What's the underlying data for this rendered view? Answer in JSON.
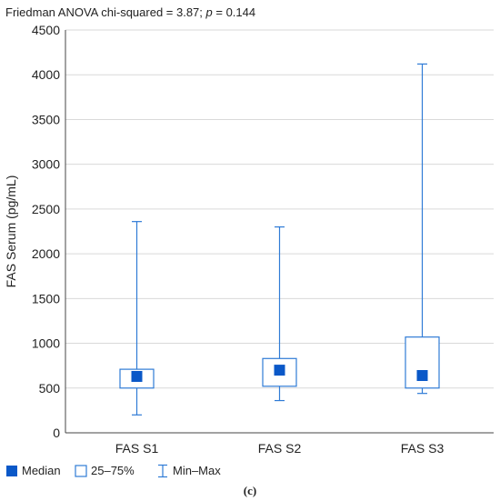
{
  "stat_text": {
    "prefix": "Friedman ANOVA chi-squared = 3.87; ",
    "p_symbol": "p",
    "suffix": " = 0.144"
  },
  "panel_label": "(c)",
  "colors": {
    "box_stroke": "#2f7bd6",
    "median_fill": "#0a58c8",
    "grid": "#d9d9d9",
    "axis_text": "#222222"
  },
  "legend": {
    "median": "Median",
    "box": "25–75%",
    "whisker": "Min–Max"
  },
  "chart_data": {
    "type": "box",
    "ylabel": "FAS Serum (pg/mL)",
    "xlabel": "",
    "ylim": [
      0,
      4500
    ],
    "yticks": [
      0,
      500,
      1000,
      1500,
      2000,
      2500,
      3000,
      3500,
      4000,
      4500
    ],
    "grid": true,
    "legend_placement": "bottom",
    "categories": [
      "FAS S1",
      "FAS S2",
      "FAS S3"
    ],
    "boxes": [
      {
        "median": 630,
        "q1": 500,
        "q3": 710,
        "min": 200,
        "max": 2360
      },
      {
        "median": 700,
        "q1": 520,
        "q3": 830,
        "min": 360,
        "max": 2300
      },
      {
        "median": 640,
        "q1": 500,
        "q3": 1070,
        "min": 440,
        "max": 4120
      }
    ]
  }
}
